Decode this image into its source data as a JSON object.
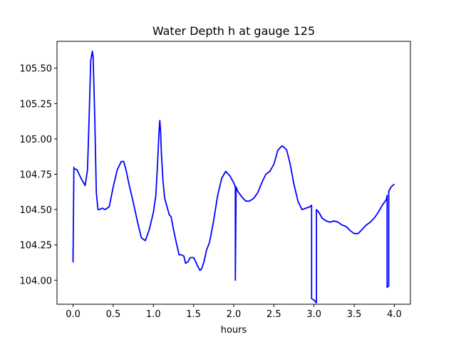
{
  "chart_data": {
    "type": "line",
    "title": "Water Depth h at gauge 125",
    "xlabel": "hours",
    "ylabel": "",
    "xlim": [
      -0.2,
      4.2
    ],
    "ylim": [
      103.83,
      105.69
    ],
    "xticks": [
      0.0,
      0.5,
      1.0,
      1.5,
      2.0,
      2.5,
      3.0,
      3.5,
      4.0
    ],
    "xtick_labels": [
      "0.0",
      "0.5",
      "1.0",
      "1.5",
      "2.0",
      "2.5",
      "3.0",
      "3.5",
      "4.0"
    ],
    "yticks": [
      104.0,
      104.25,
      104.5,
      104.75,
      105.0,
      105.25,
      105.5
    ],
    "ytick_labels": [
      "104.00",
      "104.25",
      "104.50",
      "104.75",
      "105.00",
      "105.25",
      "105.50"
    ],
    "grid": false,
    "legend": "none",
    "series": [
      {
        "color": "#0000ff",
        "x": [
          0.0,
          0.0,
          0.01,
          0.01,
          0.05,
          0.1,
          0.15,
          0.18,
          0.2,
          0.22,
          0.24,
          0.25,
          0.27,
          0.29,
          0.31,
          0.33,
          0.36,
          0.4,
          0.45,
          0.5,
          0.55,
          0.6,
          0.63,
          0.66,
          0.7,
          0.75,
          0.8,
          0.85,
          0.9,
          0.95,
          1.0,
          1.03,
          1.05,
          1.07,
          1.08,
          1.09,
          1.1,
          1.12,
          1.14,
          1.17,
          1.2,
          1.22,
          1.25,
          1.28,
          1.32,
          1.35,
          1.38,
          1.4,
          1.43,
          1.46,
          1.5,
          1.52,
          1.55,
          1.58,
          1.6,
          1.63,
          1.66,
          1.7,
          1.75,
          1.8,
          1.85,
          1.9,
          1.95,
          2.0,
          2.02,
          2.02,
          2.03,
          2.05,
          2.1,
          2.15,
          2.2,
          2.25,
          2.3,
          2.35,
          2.4,
          2.45,
          2.5,
          2.55,
          2.6,
          2.63,
          2.66,
          2.7,
          2.75,
          2.8,
          2.85,
          2.9,
          2.95,
          2.97,
          2.97,
          3.0,
          3.03,
          3.03,
          3.06,
          3.1,
          3.15,
          3.2,
          3.25,
          3.3,
          3.35,
          3.4,
          3.45,
          3.5,
          3.55,
          3.6,
          3.65,
          3.7,
          3.75,
          3.8,
          3.85,
          3.9,
          3.91,
          3.91,
          3.93,
          3.93,
          3.96,
          4.0
        ],
        "y": [
          104.22,
          104.13,
          104.8,
          104.79,
          104.78,
          104.72,
          104.67,
          104.78,
          105.15,
          105.55,
          105.62,
          105.58,
          105.15,
          104.62,
          104.5,
          104.5,
          104.51,
          104.5,
          104.52,
          104.66,
          104.78,
          104.84,
          104.84,
          104.78,
          104.67,
          104.55,
          104.42,
          104.3,
          104.28,
          104.36,
          104.48,
          104.6,
          104.8,
          105.05,
          105.13,
          105.05,
          104.9,
          104.7,
          104.58,
          104.52,
          104.46,
          104.45,
          104.36,
          104.28,
          104.18,
          104.18,
          104.17,
          104.12,
          104.13,
          104.16,
          104.16,
          104.14,
          104.1,
          104.07,
          104.08,
          104.13,
          104.21,
          104.27,
          104.42,
          104.6,
          104.72,
          104.77,
          104.74,
          104.69,
          104.66,
          104.0,
          104.66,
          104.63,
          104.59,
          104.56,
          104.56,
          104.58,
          104.62,
          104.69,
          104.75,
          104.77,
          104.82,
          104.92,
          104.95,
          104.94,
          104.92,
          104.83,
          104.68,
          104.56,
          104.5,
          104.51,
          104.52,
          104.53,
          103.87,
          103.86,
          103.84,
          104.5,
          104.48,
          104.44,
          104.42,
          104.41,
          104.42,
          104.41,
          104.39,
          104.38,
          104.35,
          104.33,
          104.33,
          104.36,
          104.39,
          104.41,
          104.44,
          104.48,
          104.53,
          104.57,
          104.6,
          103.95,
          103.96,
          104.63,
          104.66,
          104.68
        ]
      }
    ]
  }
}
